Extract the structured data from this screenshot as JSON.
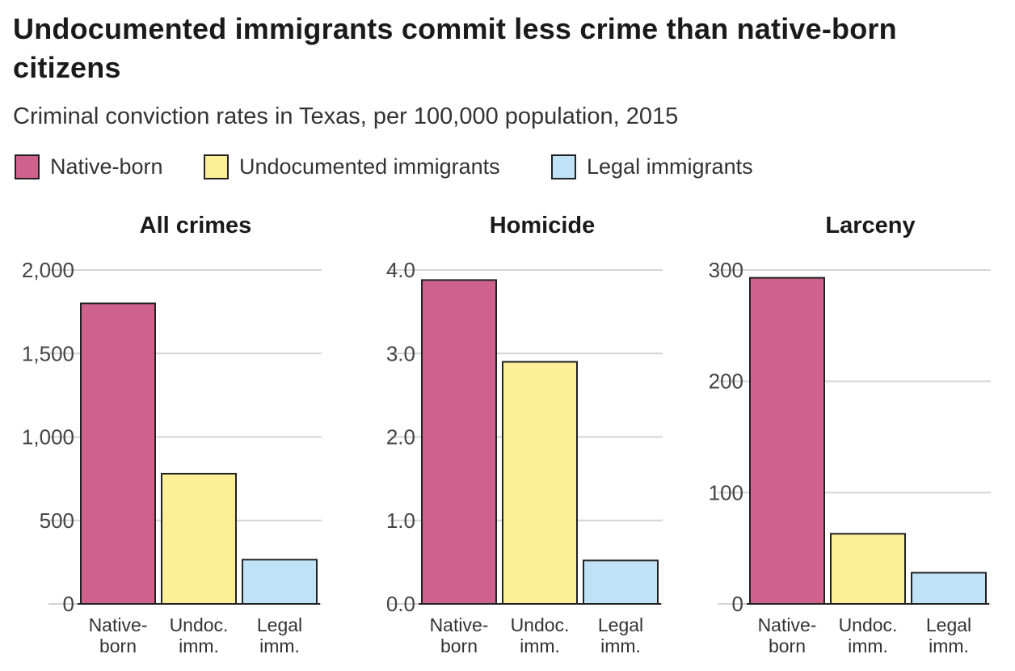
{
  "header": {
    "title": "Undocumented immigrants commit less crime than native-born citizens",
    "subtitle": "Criminal conviction rates in Texas, per 100,000 population, 2015"
  },
  "legend": [
    {
      "label": "Native-born",
      "color": "#cf628c"
    },
    {
      "label": "Undocumented immigrants",
      "color": "#fcef97"
    },
    {
      "label": "Legal immigrants",
      "color": "#bfe2f7"
    }
  ],
  "chart_data": [
    {
      "type": "bar",
      "title": "All crimes",
      "categories": [
        [
          "Native-",
          "born"
        ],
        [
          "Undoc.",
          "imm."
        ],
        [
          "Legal",
          "imm."
        ]
      ],
      "values": [
        1800,
        780,
        265
      ],
      "colors": [
        "#cf628c",
        "#fcef97",
        "#bfe2f7"
      ],
      "ylim": [
        0,
        2000
      ],
      "yticks": [
        0,
        500,
        1000,
        1500,
        2000
      ],
      "ytick_labels": [
        "0",
        "500",
        "1,000",
        "1,500",
        "2,000"
      ],
      "grid": true
    },
    {
      "type": "bar",
      "title": "Homicide",
      "categories": [
        [
          "Native-",
          "born"
        ],
        [
          "Undoc.",
          "imm."
        ],
        [
          "Legal",
          "imm."
        ]
      ],
      "values": [
        3.88,
        2.9,
        0.52
      ],
      "colors": [
        "#cf628c",
        "#fcef97",
        "#bfe2f7"
      ],
      "ylim": [
        0,
        4
      ],
      "yticks": [
        0,
        1,
        2,
        3,
        4
      ],
      "ytick_labels": [
        "0.0",
        "1.0",
        "2.0",
        "3.0",
        "4.0"
      ],
      "grid": true
    },
    {
      "type": "bar",
      "title": "Larceny",
      "categories": [
        [
          "Native-",
          "born"
        ],
        [
          "Undoc.",
          "imm."
        ],
        [
          "Legal",
          "imm."
        ]
      ],
      "values": [
        293,
        63,
        28
      ],
      "colors": [
        "#cf628c",
        "#fcef97",
        "#bfe2f7"
      ],
      "ylim": [
        0,
        300
      ],
      "yticks": [
        0,
        100,
        200,
        300
      ],
      "ytick_labels": [
        "0",
        "100",
        "200",
        "300"
      ],
      "grid": true
    }
  ]
}
